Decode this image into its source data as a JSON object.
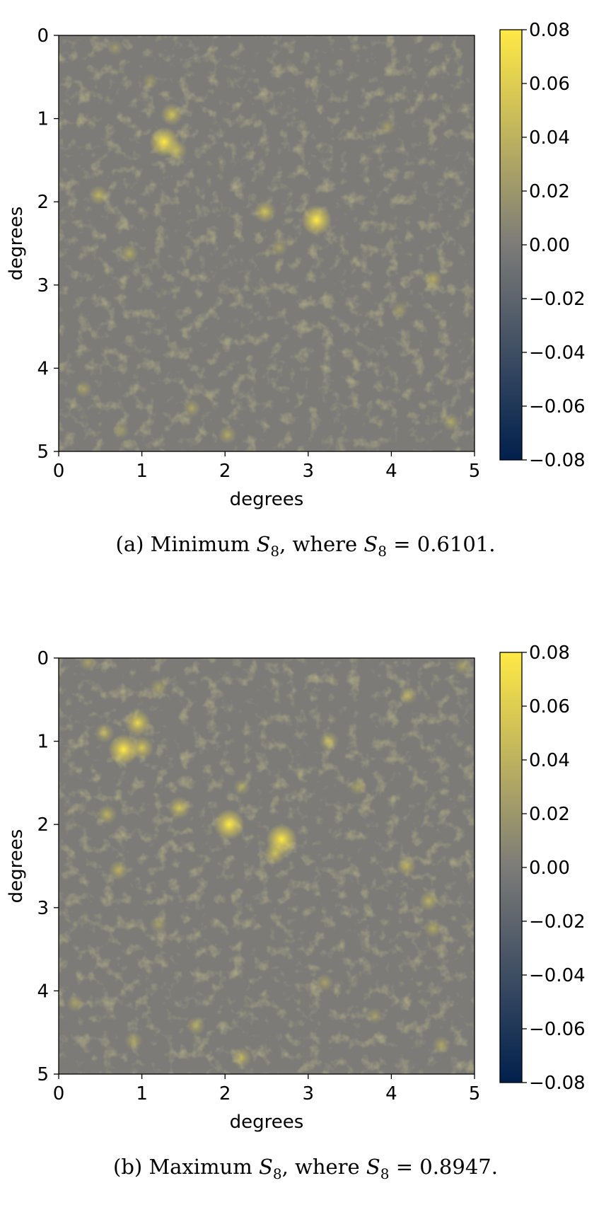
{
  "figures": [
    {
      "id": "a",
      "caption": {
        "prefix": "(a) Minimum ",
        "symbol": "S",
        "subscript": "8",
        "middle": ", where ",
        "value_text": " = 0.6101."
      },
      "chart_data": {
        "type": "heatmap",
        "title": "",
        "xlabel": "degrees",
        "ylabel": "degrees",
        "xlim": [
          0,
          5
        ],
        "ylim": [
          5,
          0
        ],
        "x_ticks": [
          "0",
          "1",
          "2",
          "3",
          "4",
          "5"
        ],
        "y_ticks": [
          "0",
          "1",
          "2",
          "3",
          "4",
          "5"
        ],
        "colorbar": {
          "range": [
            -0.08,
            0.08
          ],
          "ticks": [
            "0.08",
            "0.06",
            "0.04",
            "0.02",
            "0.00",
            "−0.02",
            "−0.04",
            "−0.06",
            "−0.08"
          ],
          "colormap": "cividis",
          "low_color": "#00204d",
          "mid_color": "#7c7b78",
          "high_color": "#ffe945"
        },
        "background_value": 0.0,
        "hotspots": [
          {
            "x": 1.27,
            "y": 1.28,
            "value": 0.075
          },
          {
            "x": 3.1,
            "y": 2.22,
            "value": 0.078
          },
          {
            "x": 1.36,
            "y": 0.95,
            "value": 0.045
          },
          {
            "x": 1.42,
            "y": 1.38,
            "value": 0.04
          },
          {
            "x": 2.48,
            "y": 2.12,
            "value": 0.045
          },
          {
            "x": 0.48,
            "y": 1.92,
            "value": 0.035
          },
          {
            "x": 0.85,
            "y": 2.62,
            "value": 0.03
          },
          {
            "x": 4.5,
            "y": 2.93,
            "value": 0.032
          },
          {
            "x": 2.03,
            "y": 4.8,
            "value": 0.03
          },
          {
            "x": 1.6,
            "y": 4.48,
            "value": 0.028
          },
          {
            "x": 4.72,
            "y": 4.65,
            "value": 0.028
          },
          {
            "x": 0.3,
            "y": 4.25,
            "value": 0.025
          },
          {
            "x": 2.65,
            "y": 2.55,
            "value": 0.025
          },
          {
            "x": 4.1,
            "y": 3.3,
            "value": 0.022
          },
          {
            "x": 0.68,
            "y": 0.15,
            "value": 0.02
          },
          {
            "x": 3.95,
            "y": 1.1,
            "value": 0.022
          },
          {
            "x": 1.1,
            "y": 0.55,
            "value": 0.02
          },
          {
            "x": 0.75,
            "y": 4.75,
            "value": 0.022
          }
        ]
      }
    },
    {
      "id": "b",
      "caption": {
        "prefix": "(b) Maximum ",
        "symbol": "S",
        "subscript": "8",
        "middle": ", where ",
        "value_text": " = 0.8947."
      },
      "chart_data": {
        "type": "heatmap",
        "title": "",
        "xlabel": "degrees",
        "ylabel": "degrees",
        "xlim": [
          0,
          5
        ],
        "ylim": [
          5,
          0
        ],
        "x_ticks": [
          "0",
          "1",
          "2",
          "3",
          "4",
          "5"
        ],
        "y_ticks": [
          "0",
          "1",
          "2",
          "3",
          "4",
          "5"
        ],
        "colorbar": {
          "range": [
            -0.08,
            0.08
          ],
          "ticks": [
            "0.08",
            "0.06",
            "0.04",
            "0.02",
            "0.00",
            "−0.02",
            "−0.04",
            "−0.06",
            "−0.08"
          ],
          "colormap": "cividis",
          "low_color": "#00204d",
          "mid_color": "#7c7b78",
          "high_color": "#ffe945"
        },
        "background_value": 0.0,
        "hotspots": [
          {
            "x": 0.78,
            "y": 1.1,
            "value": 0.078
          },
          {
            "x": 0.95,
            "y": 0.78,
            "value": 0.06
          },
          {
            "x": 1.0,
            "y": 1.08,
            "value": 0.05
          },
          {
            "x": 2.05,
            "y": 2.0,
            "value": 0.078
          },
          {
            "x": 2.68,
            "y": 2.18,
            "value": 0.08
          },
          {
            "x": 2.6,
            "y": 2.35,
            "value": 0.045
          },
          {
            "x": 1.45,
            "y": 1.8,
            "value": 0.045
          },
          {
            "x": 0.55,
            "y": 0.9,
            "value": 0.035
          },
          {
            "x": 0.58,
            "y": 1.88,
            "value": 0.035
          },
          {
            "x": 0.72,
            "y": 2.55,
            "value": 0.035
          },
          {
            "x": 3.25,
            "y": 1.0,
            "value": 0.035
          },
          {
            "x": 4.2,
            "y": 0.45,
            "value": 0.03
          },
          {
            "x": 4.18,
            "y": 2.5,
            "value": 0.035
          },
          {
            "x": 4.45,
            "y": 2.92,
            "value": 0.035
          },
          {
            "x": 4.5,
            "y": 3.25,
            "value": 0.03
          },
          {
            "x": 1.65,
            "y": 4.42,
            "value": 0.03
          },
          {
            "x": 2.2,
            "y": 4.8,
            "value": 0.035
          },
          {
            "x": 0.9,
            "y": 4.6,
            "value": 0.028
          },
          {
            "x": 4.6,
            "y": 4.65,
            "value": 0.028
          },
          {
            "x": 1.2,
            "y": 3.2,
            "value": 0.025
          },
          {
            "x": 3.2,
            "y": 3.9,
            "value": 0.025
          },
          {
            "x": 0.2,
            "y": 4.15,
            "value": 0.025
          },
          {
            "x": 1.2,
            "y": 0.35,
            "value": 0.025
          },
          {
            "x": 3.6,
            "y": 1.55,
            "value": 0.025
          },
          {
            "x": 4.85,
            "y": 0.1,
            "value": 0.025
          },
          {
            "x": 0.35,
            "y": 0.05,
            "value": 0.025
          },
          {
            "x": 2.2,
            "y": 1.55,
            "value": 0.025
          },
          {
            "x": 3.8,
            "y": 4.3,
            "value": 0.022
          }
        ]
      }
    }
  ]
}
